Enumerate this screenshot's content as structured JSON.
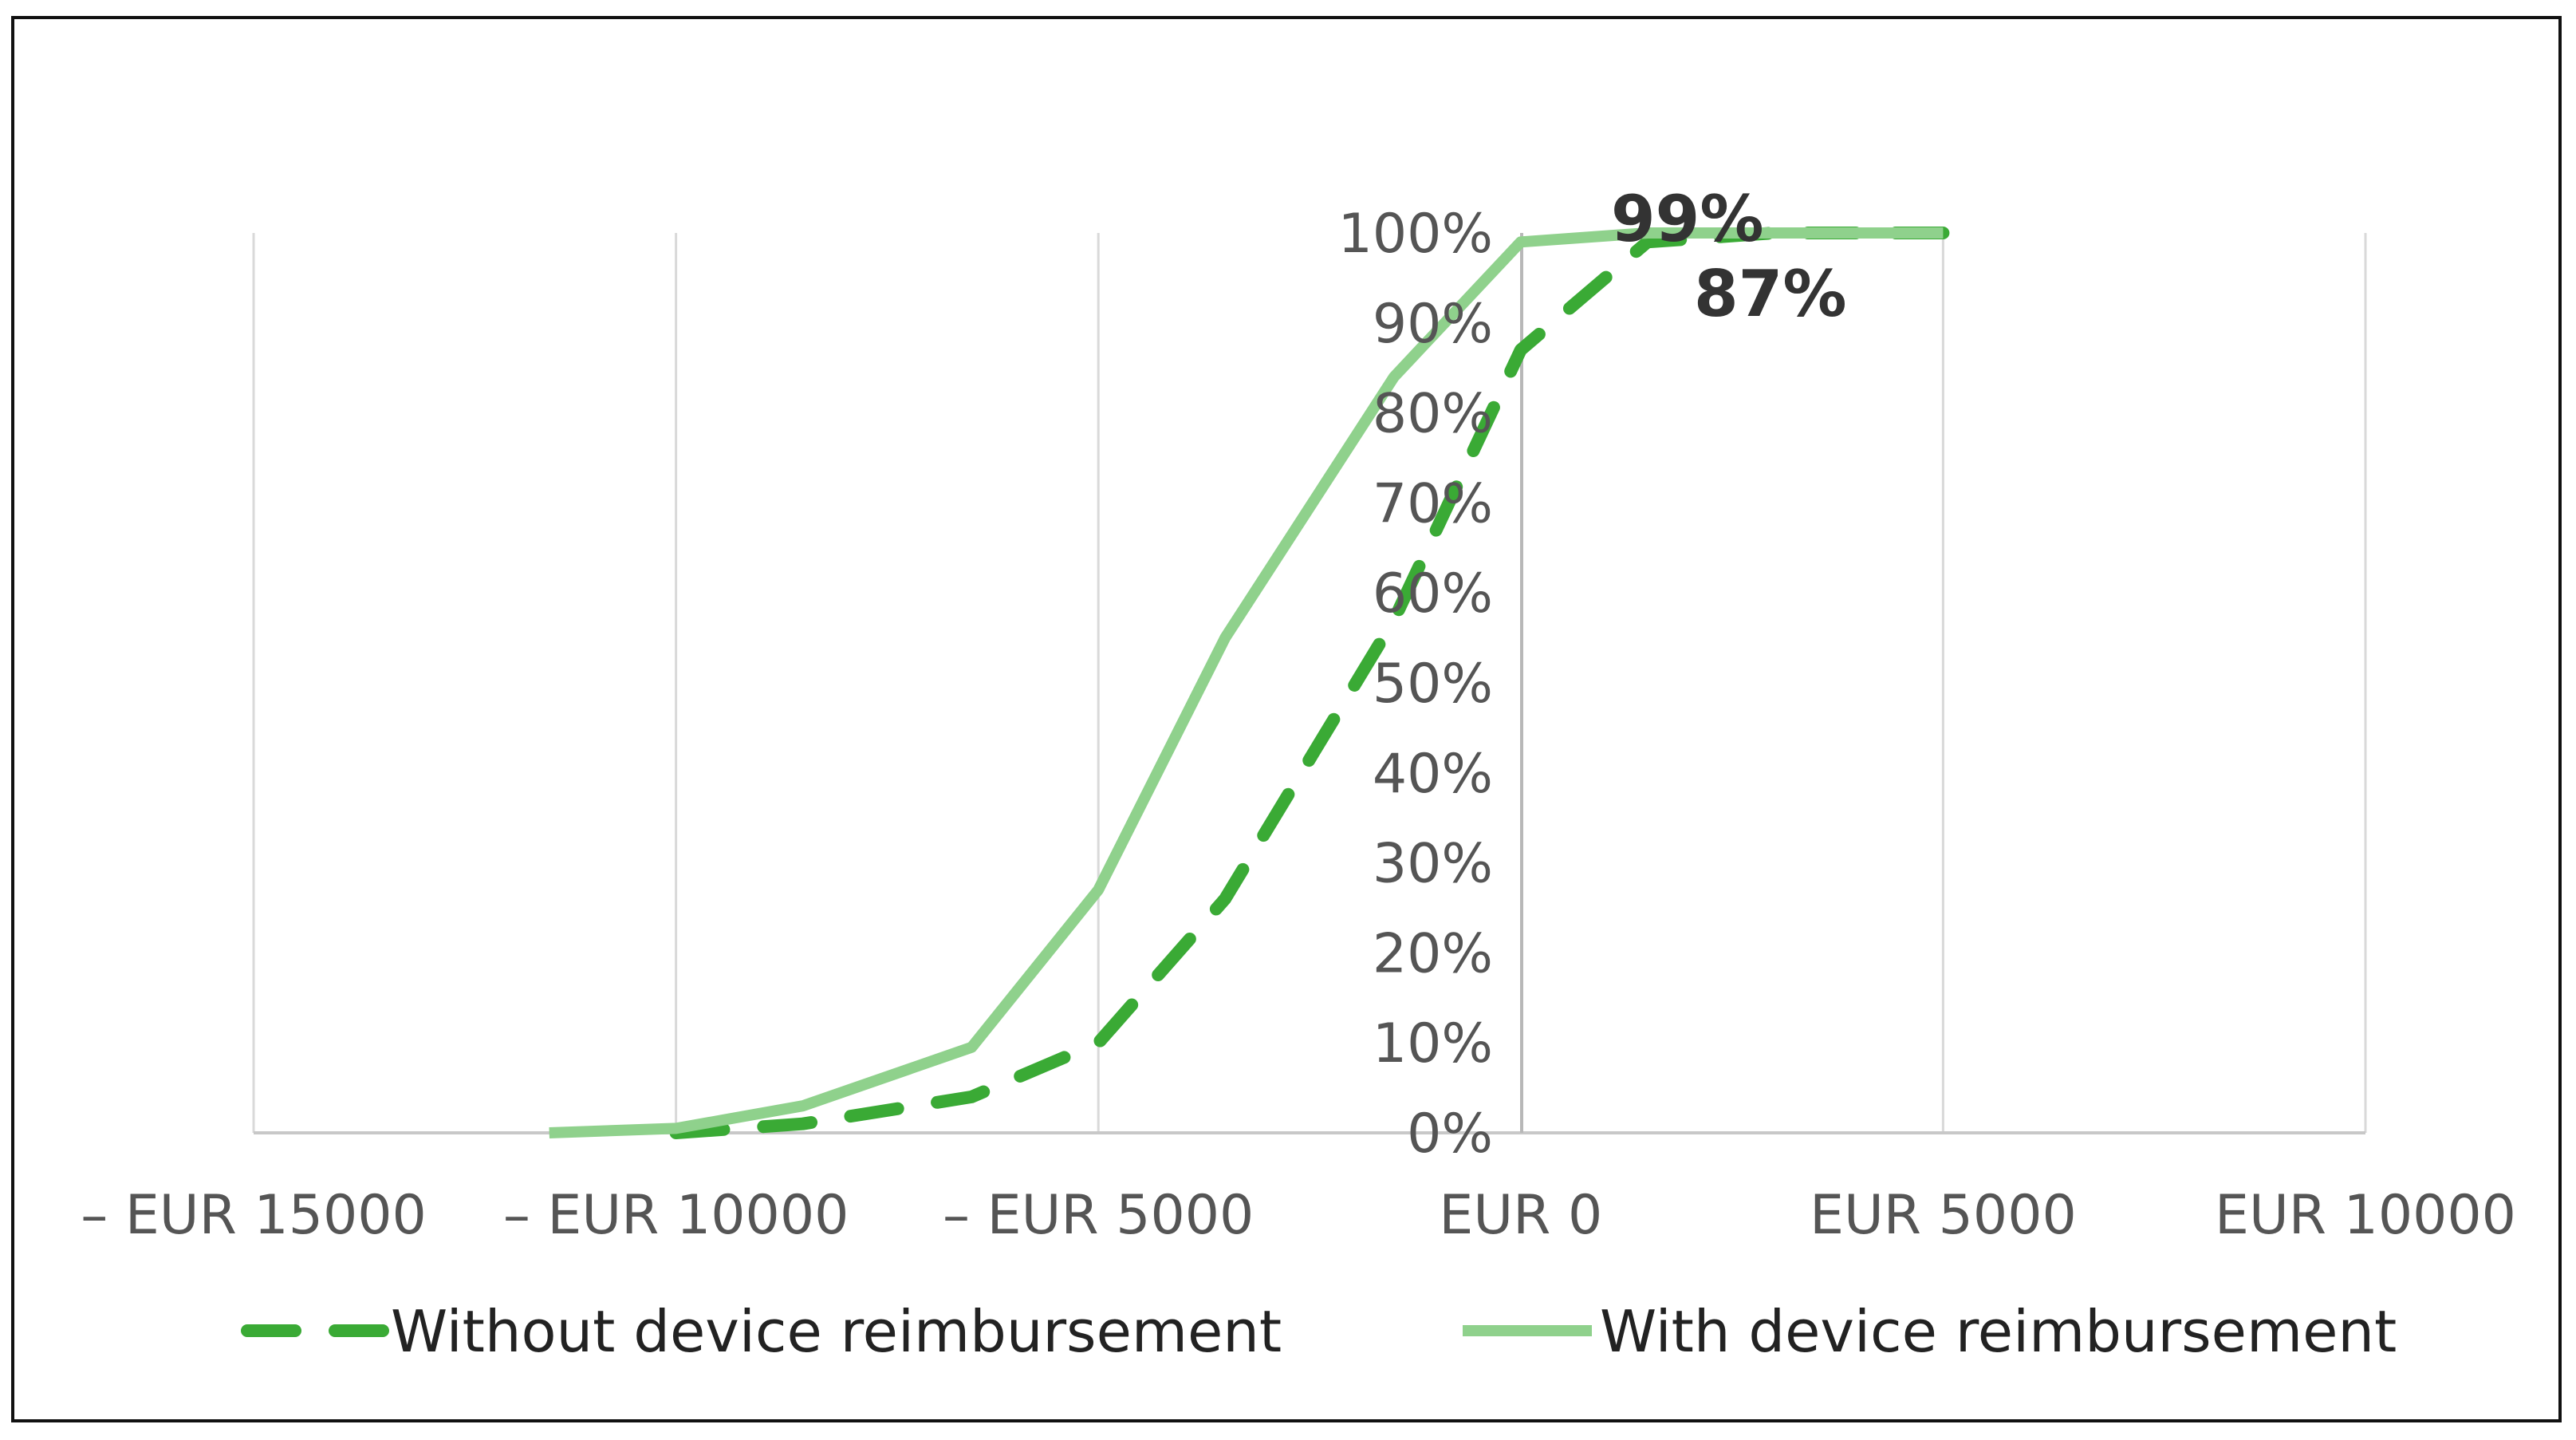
{
  "chart_data": {
    "type": "line",
    "title": "",
    "xlabel": "",
    "ylabel": "",
    "xlim": [
      -15000,
      10000
    ],
    "ylim": [
      0,
      1
    ],
    "grid": "vertical",
    "legend_position": "bottom",
    "x_tick_labels": [
      "– EUR 15000",
      "– EUR 10000",
      "– EUR 5000",
      "EUR 0",
      "EUR 5000",
      "EUR 10000"
    ],
    "x_tick_values": [
      -15000,
      -10000,
      -5000,
      0,
      5000,
      10000
    ],
    "y_tick_labels": [
      "0%",
      "10%",
      "20%",
      "30%",
      "40%",
      "50%",
      "60%",
      "70%",
      "80%",
      "90%",
      "100%"
    ],
    "y_tick_values": [
      0,
      0.1,
      0.2,
      0.3,
      0.4,
      0.5,
      0.6,
      0.7,
      0.8,
      0.9,
      1.0
    ],
    "series": [
      {
        "name": "Without device reimbursement",
        "style": "dashed",
        "color": "#3aaa35",
        "x": [
          -10000,
          -8500,
          -6500,
          -5000,
          -3500,
          -1500,
          0,
          1500,
          3000,
          5000
        ],
        "values": [
          0,
          0.01,
          0.04,
          0.1,
          0.26,
          0.57,
          0.87,
          0.99,
          1.0,
          1.0
        ]
      },
      {
        "name": "With device reimbursement",
        "style": "solid",
        "color": "#8fd18c",
        "x": [
          -11500,
          -10000,
          -8500,
          -6500,
          -5000,
          -3500,
          -1500,
          0,
          1500,
          3000,
          5000
        ],
        "values": [
          0,
          0.005,
          0.03,
          0.095,
          0.27,
          0.55,
          0.84,
          0.99,
          1.0,
          1.0,
          1.0
        ]
      }
    ],
    "annotations": [
      {
        "text": "99%",
        "x": 1500,
        "y": 1.0
      },
      {
        "text": "87%",
        "x": 3000,
        "y": 0.92
      }
    ]
  }
}
